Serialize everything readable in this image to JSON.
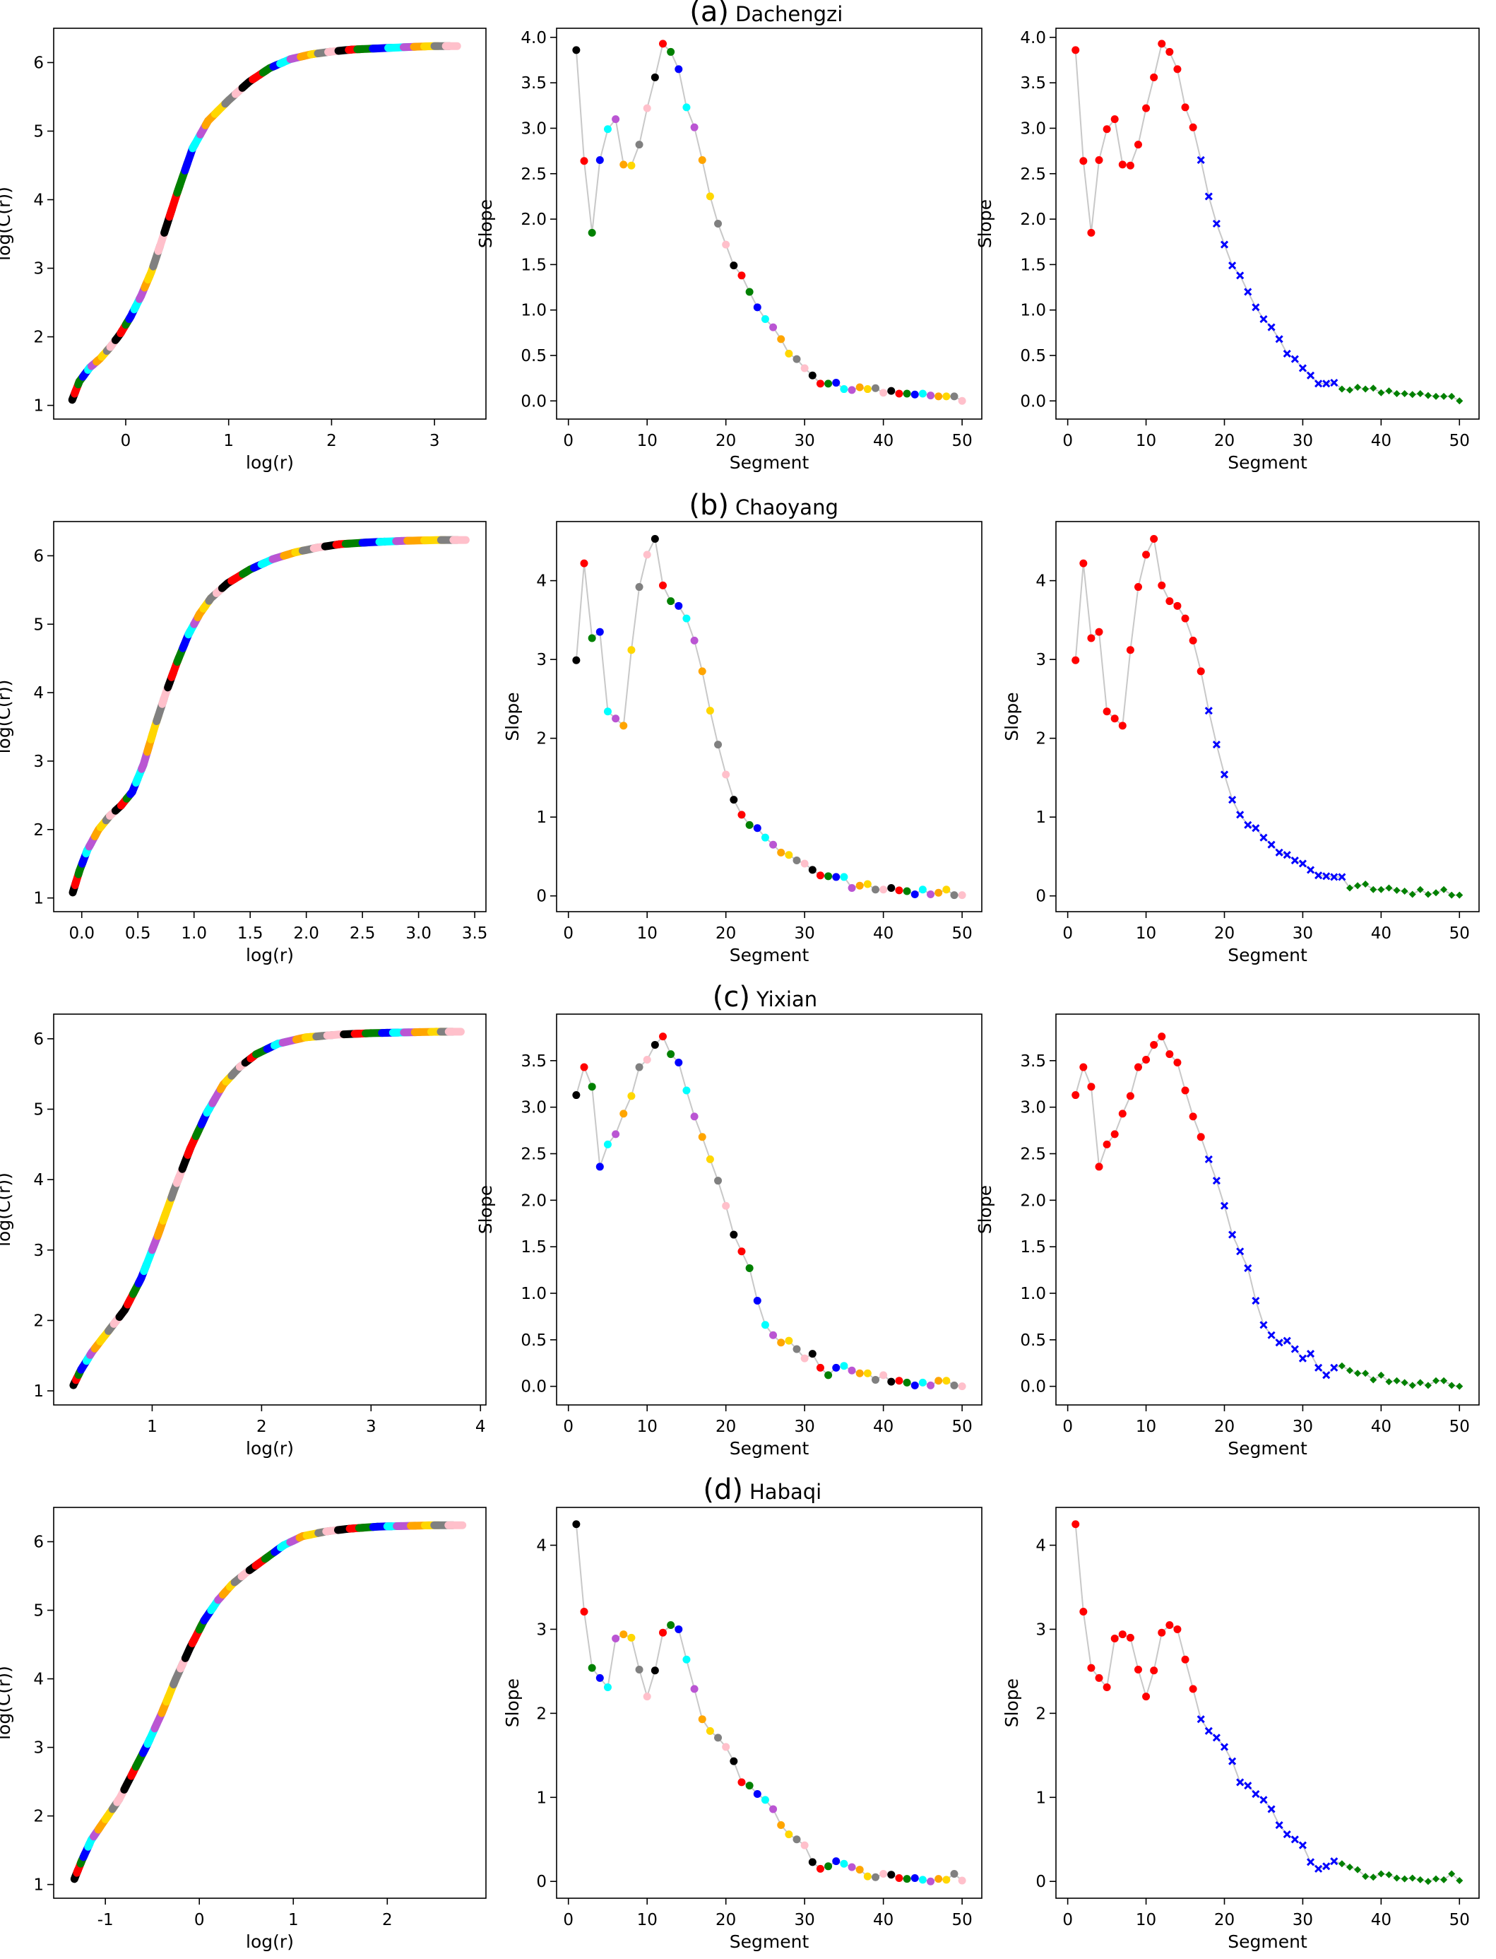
{
  "figure": {
    "rows": [
      {
        "label": "(a)",
        "name": "Dachengzi"
      },
      {
        "label": "(b)",
        "name": "Chaoyang"
      },
      {
        "label": "(c)",
        "name": "Yixian"
      },
      {
        "label": "(d)",
        "name": "Habaqi"
      }
    ],
    "segment_colors": [
      "black",
      "red",
      "green",
      "blue",
      "cyan",
      "mediumorchid",
      "orange",
      "gold",
      "grey",
      "pink"
    ],
    "class_colors": {
      "first": "red",
      "second": "blue",
      "third": "green"
    },
    "connector_color": "#c8c8c8"
  },
  "chart_data": [
    {
      "type": "line",
      "row": 0,
      "col": 0,
      "xlabel": "log(r)",
      "ylabel": "log(C(r))",
      "xlim": [
        -0.7,
        3.5
      ],
      "ylim": [
        0.8,
        6.5
      ],
      "xticks": [
        0,
        1,
        2,
        3
      ],
      "yticks": [
        1,
        2,
        3,
        4,
        5,
        6
      ],
      "x": [
        -0.52,
        -0.45,
        -0.35,
        -0.25,
        -0.15,
        -0.05,
        0.05,
        0.15,
        0.25,
        0.35,
        0.5,
        0.65,
        0.8,
        1.0,
        1.2,
        1.4,
        1.6,
        1.8,
        2.0,
        2.2,
        2.5,
        2.8,
        3.0,
        3.22
      ],
      "y": [
        1.08,
        1.35,
        1.55,
        1.68,
        1.85,
        2.05,
        2.3,
        2.6,
        2.95,
        3.4,
        4.1,
        4.75,
        5.15,
        5.45,
        5.72,
        5.92,
        6.05,
        6.12,
        6.16,
        6.19,
        6.21,
        6.23,
        6.24,
        6.24
      ]
    },
    {
      "type": "scatter",
      "row": 0,
      "col": 1,
      "mode": "segment",
      "xlabel": "Segment",
      "ylabel": "Slope",
      "xlim": [
        -1.5,
        52.5
      ],
      "ylim": [
        -0.2,
        4.1
      ],
      "xticks": [
        0,
        10,
        20,
        30,
        40,
        50
      ],
      "yticks": [
        0.0,
        0.5,
        1.0,
        1.5,
        2.0,
        2.5,
        3.0,
        3.5,
        4.0
      ],
      "ytick_decimals": 1,
      "values": [
        3.86,
        2.64,
        1.85,
        2.65,
        2.99,
        3.1,
        2.6,
        2.59,
        2.82,
        3.22,
        3.56,
        3.93,
        3.84,
        3.65,
        3.23,
        3.01,
        2.65,
        2.25,
        1.95,
        1.72,
        1.49,
        1.38,
        1.2,
        1.03,
        0.9,
        0.81,
        0.68,
        0.52,
        0.46,
        0.36,
        0.28,
        0.19,
        0.19,
        0.2,
        0.13,
        0.12,
        0.15,
        0.13,
        0.14,
        0.09,
        0.11,
        0.08,
        0.08,
        0.07,
        0.08,
        0.06,
        0.05,
        0.05,
        0.05,
        0.0
      ]
    },
    {
      "type": "scatter",
      "row": 0,
      "col": 2,
      "mode": "class",
      "xlabel": "Segment",
      "ylabel": "Slope",
      "xlim": [
        -1.5,
        52.5
      ],
      "ylim": [
        -0.2,
        4.1
      ],
      "xticks": [
        0,
        10,
        20,
        30,
        40,
        50
      ],
      "yticks": [
        0.0,
        0.5,
        1.0,
        1.5,
        2.0,
        2.5,
        3.0,
        3.5,
        4.0
      ],
      "ytick_decimals": 1,
      "class_bounds": [
        16,
        34
      ],
      "values": [
        3.86,
        2.64,
        1.85,
        2.65,
        2.99,
        3.1,
        2.6,
        2.59,
        2.82,
        3.22,
        3.56,
        3.93,
        3.84,
        3.65,
        3.23,
        3.01,
        2.65,
        2.25,
        1.95,
        1.72,
        1.49,
        1.38,
        1.2,
        1.03,
        0.9,
        0.81,
        0.68,
        0.52,
        0.46,
        0.36,
        0.28,
        0.19,
        0.19,
        0.2,
        0.13,
        0.12,
        0.15,
        0.13,
        0.14,
        0.09,
        0.11,
        0.08,
        0.08,
        0.07,
        0.08,
        0.06,
        0.05,
        0.05,
        0.05,
        0.0
      ]
    },
    {
      "type": "line",
      "row": 1,
      "col": 0,
      "xlabel": "log(r)",
      "ylabel": "log(C(r))",
      "xlim": [
        -0.25,
        3.6
      ],
      "ylim": [
        0.8,
        6.5
      ],
      "xticks": [
        0.0,
        0.5,
        1.0,
        1.5,
        2.0,
        2.5,
        3.0,
        3.5
      ],
      "xtick_decimals": 1,
      "yticks": [
        1,
        2,
        3,
        4,
        5,
        6
      ],
      "x": [
        -0.08,
        -0.02,
        0.05,
        0.15,
        0.25,
        0.35,
        0.45,
        0.55,
        0.65,
        0.75,
        0.85,
        0.95,
        1.05,
        1.15,
        1.3,
        1.5,
        1.7,
        1.9,
        2.1,
        2.3,
        2.6,
        2.9,
        3.2,
        3.42
      ],
      "y": [
        1.08,
        1.4,
        1.7,
        2.0,
        2.2,
        2.35,
        2.55,
        2.95,
        3.5,
        4.0,
        4.45,
        4.85,
        5.15,
        5.38,
        5.6,
        5.8,
        5.95,
        6.05,
        6.12,
        6.17,
        6.2,
        6.22,
        6.23,
        6.23
      ]
    },
    {
      "type": "scatter",
      "row": 1,
      "col": 1,
      "mode": "segment",
      "xlabel": "Segment",
      "ylabel": "Slope",
      "xlim": [
        -1.5,
        52.5
      ],
      "ylim": [
        -0.2,
        4.75
      ],
      "xticks": [
        0,
        10,
        20,
        30,
        40,
        50
      ],
      "yticks": [
        0,
        1,
        2,
        3,
        4
      ],
      "values": [
        2.99,
        4.22,
        3.27,
        3.35,
        2.34,
        2.25,
        2.16,
        3.12,
        3.92,
        4.33,
        4.53,
        3.94,
        3.74,
        3.68,
        3.52,
        3.24,
        2.85,
        2.35,
        1.92,
        1.54,
        1.22,
        1.03,
        0.9,
        0.86,
        0.74,
        0.65,
        0.55,
        0.52,
        0.45,
        0.41,
        0.33,
        0.26,
        0.25,
        0.24,
        0.24,
        0.1,
        0.13,
        0.15,
        0.08,
        0.08,
        0.1,
        0.07,
        0.06,
        0.02,
        0.08,
        0.02,
        0.04,
        0.08,
        0.01,
        0.01
      ]
    },
    {
      "type": "scatter",
      "row": 1,
      "col": 2,
      "mode": "class",
      "xlabel": "Segment",
      "ylabel": "Slope",
      "xlim": [
        -1.5,
        52.5
      ],
      "ylim": [
        -0.2,
        4.75
      ],
      "xticks": [
        0,
        10,
        20,
        30,
        40,
        50
      ],
      "yticks": [
        0,
        1,
        2,
        3,
        4
      ],
      "class_bounds": [
        17,
        35
      ],
      "values": [
        2.99,
        4.22,
        3.27,
        3.35,
        2.34,
        2.25,
        2.16,
        3.12,
        3.92,
        4.33,
        4.53,
        3.94,
        3.74,
        3.68,
        3.52,
        3.24,
        2.85,
        2.35,
        1.92,
        1.54,
        1.22,
        1.03,
        0.9,
        0.86,
        0.74,
        0.65,
        0.55,
        0.52,
        0.45,
        0.41,
        0.33,
        0.26,
        0.25,
        0.24,
        0.24,
        0.1,
        0.13,
        0.15,
        0.08,
        0.08,
        0.1,
        0.07,
        0.06,
        0.02,
        0.08,
        0.02,
        0.04,
        0.08,
        0.01,
        0.01
      ]
    },
    {
      "type": "line",
      "row": 2,
      "col": 0,
      "xlabel": "log(r)",
      "ylabel": "log(C(r))",
      "xlim": [
        0.1,
        4.05
      ],
      "ylim": [
        0.8,
        6.35
      ],
      "xticks": [
        1,
        2,
        3,
        4
      ],
      "yticks": [
        1,
        2,
        3,
        4,
        5,
        6
      ],
      "x": [
        0.28,
        0.35,
        0.45,
        0.6,
        0.75,
        0.9,
        1.05,
        1.2,
        1.35,
        1.5,
        1.65,
        1.8,
        1.95,
        2.15,
        2.4,
        2.7,
        3.0,
        3.3,
        3.6,
        3.82
      ],
      "y": [
        1.08,
        1.3,
        1.55,
        1.85,
        2.15,
        2.6,
        3.2,
        3.85,
        4.45,
        4.95,
        5.35,
        5.6,
        5.78,
        5.93,
        6.02,
        6.06,
        6.08,
        6.09,
        6.1,
        6.1
      ]
    },
    {
      "type": "scatter",
      "row": 2,
      "col": 1,
      "mode": "segment",
      "xlabel": "Segment",
      "ylabel": "Slope",
      "xlim": [
        -1.5,
        52.5
      ],
      "ylim": [
        -0.2,
        4.0
      ],
      "xticks": [
        0,
        10,
        20,
        30,
        40,
        50
      ],
      "yticks": [
        0.0,
        0.5,
        1.0,
        1.5,
        2.0,
        2.5,
        3.0,
        3.5
      ],
      "ytick_decimals": 1,
      "values": [
        3.13,
        3.43,
        3.22,
        2.36,
        2.6,
        2.71,
        2.93,
        3.12,
        3.43,
        3.51,
        3.67,
        3.76,
        3.57,
        3.48,
        3.18,
        2.9,
        2.68,
        2.44,
        2.21,
        1.94,
        1.63,
        1.45,
        1.27,
        0.92,
        0.66,
        0.55,
        0.47,
        0.49,
        0.4,
        0.3,
        0.35,
        0.2,
        0.12,
        0.2,
        0.22,
        0.17,
        0.14,
        0.14,
        0.07,
        0.12,
        0.05,
        0.06,
        0.04,
        0.01,
        0.04,
        0.01,
        0.06,
        0.06,
        0.01,
        0.0
      ]
    },
    {
      "type": "scatter",
      "row": 2,
      "col": 2,
      "mode": "class",
      "xlabel": "Segment",
      "ylabel": "Slope",
      "xlim": [
        -1.5,
        52.5
      ],
      "ylim": [
        -0.2,
        4.0
      ],
      "xticks": [
        0,
        10,
        20,
        30,
        40,
        50
      ],
      "yticks": [
        0.0,
        0.5,
        1.0,
        1.5,
        2.0,
        2.5,
        3.0,
        3.5
      ],
      "ytick_decimals": 1,
      "class_bounds": [
        17,
        34
      ],
      "values": [
        3.13,
        3.43,
        3.22,
        2.36,
        2.6,
        2.71,
        2.93,
        3.12,
        3.43,
        3.51,
        3.67,
        3.76,
        3.57,
        3.48,
        3.18,
        2.9,
        2.68,
        2.44,
        2.21,
        1.94,
        1.63,
        1.45,
        1.27,
        0.92,
        0.66,
        0.55,
        0.47,
        0.49,
        0.4,
        0.3,
        0.35,
        0.2,
        0.12,
        0.2,
        0.22,
        0.17,
        0.14,
        0.14,
        0.07,
        0.12,
        0.05,
        0.06,
        0.04,
        0.01,
        0.04,
        0.01,
        0.06,
        0.06,
        0.01,
        0.0
      ]
    },
    {
      "type": "line",
      "row": 3,
      "col": 0,
      "xlabel": "log(r)",
      "ylabel": "log(C(r))",
      "xlim": [
        -1.55,
        3.05
      ],
      "ylim": [
        0.8,
        6.5
      ],
      "xticks": [
        -1,
        0,
        1,
        2
      ],
      "yticks": [
        1,
        2,
        3,
        4,
        5,
        6
      ],
      "x": [
        -1.33,
        -1.25,
        -1.15,
        -1.0,
        -0.85,
        -0.7,
        -0.55,
        -0.4,
        -0.25,
        -0.1,
        0.05,
        0.2,
        0.35,
        0.5,
        0.7,
        0.9,
        1.1,
        1.35,
        1.6,
        1.9,
        2.2,
        2.5,
        2.8
      ],
      "y": [
        1.08,
        1.35,
        1.65,
        1.95,
        2.25,
        2.65,
        3.05,
        3.5,
        4.0,
        4.45,
        4.85,
        5.15,
        5.38,
        5.55,
        5.75,
        5.95,
        6.08,
        6.15,
        6.19,
        6.22,
        6.23,
        6.24,
        6.24
      ]
    },
    {
      "type": "scatter",
      "row": 3,
      "col": 1,
      "mode": "segment",
      "xlabel": "Segment",
      "ylabel": "Slope",
      "xlim": [
        -1.5,
        52.5
      ],
      "ylim": [
        -0.2,
        4.45
      ],
      "xticks": [
        0,
        10,
        20,
        30,
        40,
        50
      ],
      "yticks": [
        0,
        1,
        2,
        3,
        4
      ],
      "values": [
        4.25,
        3.21,
        2.54,
        2.42,
        2.31,
        2.89,
        2.94,
        2.9,
        2.52,
        2.2,
        2.51,
        2.96,
        3.05,
        3.0,
        2.64,
        2.29,
        1.93,
        1.79,
        1.71,
        1.6,
        1.43,
        1.18,
        1.14,
        1.04,
        0.97,
        0.86,
        0.67,
        0.56,
        0.5,
        0.43,
        0.23,
        0.15,
        0.18,
        0.24,
        0.21,
        0.17,
        0.14,
        0.06,
        0.05,
        0.09,
        0.08,
        0.04,
        0.03,
        0.04,
        0.02,
        0.0,
        0.03,
        0.02,
        0.09,
        0.01
      ]
    },
    {
      "type": "scatter",
      "row": 3,
      "col": 2,
      "mode": "class",
      "xlabel": "Segment",
      "ylabel": "Slope",
      "xlim": [
        -1.5,
        52.5
      ],
      "ylim": [
        -0.2,
        4.45
      ],
      "xticks": [
        0,
        10,
        20,
        30,
        40,
        50
      ],
      "yticks": [
        0,
        1,
        2,
        3,
        4
      ],
      "class_bounds": [
        16,
        34
      ],
      "values": [
        4.25,
        3.21,
        2.54,
        2.42,
        2.31,
        2.89,
        2.94,
        2.9,
        2.52,
        2.2,
        2.51,
        2.96,
        3.05,
        3.0,
        2.64,
        2.29,
        1.93,
        1.79,
        1.71,
        1.6,
        1.43,
        1.18,
        1.14,
        1.04,
        0.97,
        0.86,
        0.67,
        0.56,
        0.5,
        0.43,
        0.23,
        0.15,
        0.18,
        0.24,
        0.21,
        0.17,
        0.14,
        0.06,
        0.05,
        0.09,
        0.08,
        0.04,
        0.03,
        0.04,
        0.02,
        0.0,
        0.03,
        0.02,
        0.09,
        0.01
      ]
    }
  ]
}
